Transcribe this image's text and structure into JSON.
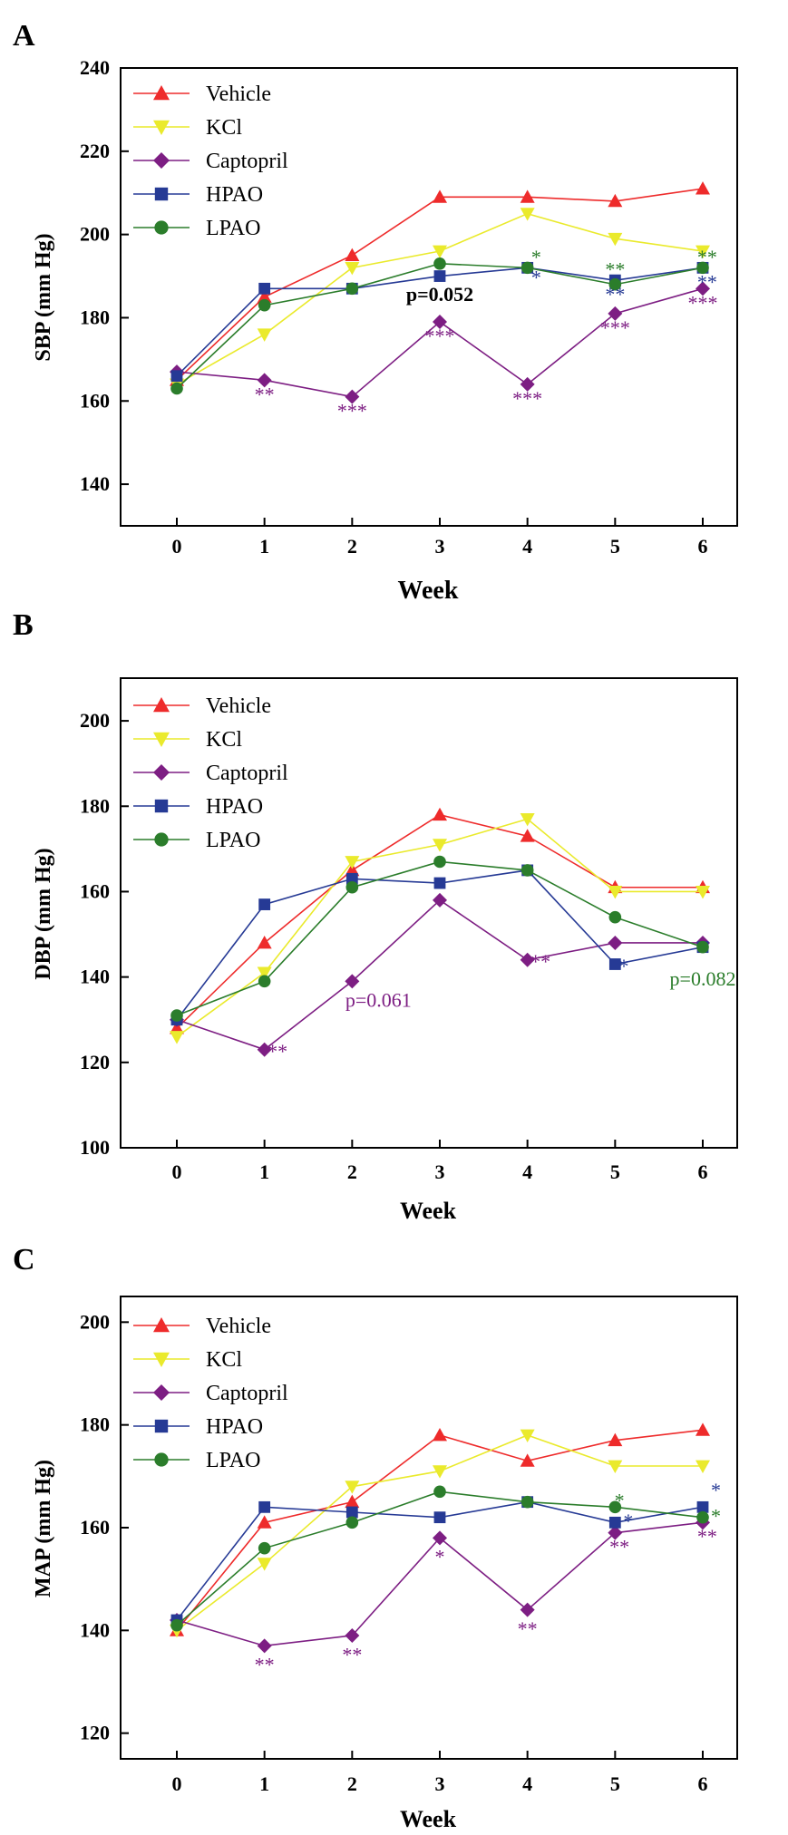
{
  "colors": {
    "Vehicle": "#ee2b2b",
    "KCl": "#eaea2c",
    "Captopril": "#7d1e83",
    "HPAO": "#263a95",
    "LPAO": "#2b7d2b",
    "axis": "#000000"
  },
  "chart_data": [
    {
      "type": "line",
      "panel": "A",
      "title": "",
      "xlabel": "Week",
      "ylabel": "SBP (mm Hg)",
      "x": [
        0,
        1,
        2,
        3,
        4,
        5,
        6
      ],
      "xlim": [
        -0.5,
        6.5
      ],
      "ylim": [
        130,
        240
      ],
      "yticks": [
        140,
        160,
        180,
        200,
        220,
        240
      ],
      "legend_position": "top-left",
      "series": [
        {
          "name": "Vehicle",
          "marker": "triangle-up",
          "values": [
            165,
            185,
            195,
            209,
            209,
            208,
            211
          ]
        },
        {
          "name": "KCl",
          "marker": "triangle-down",
          "values": [
            164,
            176,
            192,
            196,
            205,
            199,
            196
          ]
        },
        {
          "name": "Captopril",
          "marker": "diamond",
          "values": [
            167,
            165,
            161,
            179,
            164,
            181,
            187
          ]
        },
        {
          "name": "HPAO",
          "marker": "square",
          "values": [
            166,
            187,
            187,
            190,
            192,
            189,
            192
          ]
        },
        {
          "name": "LPAO",
          "marker": "circle",
          "values": [
            163,
            183,
            187,
            193,
            192,
            188,
            192
          ]
        }
      ],
      "annotations": [
        {
          "text": "**",
          "x": 1,
          "y": 160,
          "color": "Captopril"
        },
        {
          "text": "***",
          "x": 2,
          "y": 156,
          "color": "Captopril"
        },
        {
          "text": "***",
          "x": 3,
          "y": 174,
          "color": "Captopril"
        },
        {
          "text": "p=0.052",
          "x": 3,
          "y": 184,
          "color": "axis",
          "bold": true
        },
        {
          "text": "***",
          "x": 4,
          "y": 159,
          "color": "Captopril"
        },
        {
          "text": "*",
          "x": 4.1,
          "y": 193,
          "color": "LPAO"
        },
        {
          "text": "*",
          "x": 4.1,
          "y": 188,
          "color": "HPAO"
        },
        {
          "text": "**",
          "x": 5,
          "y": 190,
          "color": "LPAO"
        },
        {
          "text": "**",
          "x": 5,
          "y": 184,
          "color": "HPAO"
        },
        {
          "text": "***",
          "x": 5,
          "y": 176,
          "color": "Captopril"
        },
        {
          "text": "**",
          "x": 6.05,
          "y": 193,
          "color": "LPAO"
        },
        {
          "text": "**",
          "x": 6.05,
          "y": 187,
          "color": "HPAO"
        },
        {
          "text": "***",
          "x": 6,
          "y": 182,
          "color": "Captopril"
        }
      ]
    },
    {
      "type": "line",
      "panel": "B",
      "title": "",
      "xlabel": "Week",
      "ylabel": "DBP (mm Hg)",
      "x": [
        0,
        1,
        2,
        3,
        4,
        5,
        6
      ],
      "xlim": [
        -0.5,
        6.5
      ],
      "ylim": [
        100,
        210
      ],
      "yticks": [
        100,
        120,
        140,
        160,
        180,
        200
      ],
      "legend_position": "top-left",
      "series": [
        {
          "name": "Vehicle",
          "marker": "triangle-up",
          "values": [
            128,
            148,
            165,
            178,
            173,
            161,
            161
          ]
        },
        {
          "name": "KCl",
          "marker": "triangle-down",
          "values": [
            126,
            141,
            167,
            171,
            177,
            160,
            160
          ]
        },
        {
          "name": "Captopril",
          "marker": "diamond",
          "values": [
            130,
            123,
            139,
            158,
            144,
            148,
            148
          ]
        },
        {
          "name": "HPAO",
          "marker": "square",
          "values": [
            130,
            157,
            163,
            162,
            165,
            143,
            147
          ]
        },
        {
          "name": "LPAO",
          "marker": "circle",
          "values": [
            131,
            139,
            161,
            167,
            165,
            154,
            147
          ]
        }
      ],
      "annotations": [
        {
          "text": "**",
          "x": 1.15,
          "y": 121,
          "color": "Captopril"
        },
        {
          "text": "p=0.061",
          "x": 2.3,
          "y": 133,
          "color": "Captopril"
        },
        {
          "text": "**",
          "x": 4.15,
          "y": 142,
          "color": "Captopril"
        },
        {
          "text": "*",
          "x": 5.1,
          "y": 141,
          "color": "HPAO"
        },
        {
          "text": "p=0.082",
          "x": 6,
          "y": 138,
          "color": "LPAO"
        }
      ]
    },
    {
      "type": "line",
      "panel": "C",
      "title": "",
      "xlabel": "Week",
      "ylabel": "MAP (mm Hg)",
      "x": [
        0,
        1,
        2,
        3,
        4,
        5,
        6
      ],
      "xlim": [
        -0.5,
        6.5
      ],
      "ylim": [
        115,
        205
      ],
      "yticks": [
        120,
        140,
        160,
        180,
        200
      ],
      "legend_position": "top-left",
      "series": [
        {
          "name": "Vehicle",
          "marker": "triangle-up",
          "values": [
            140,
            161,
            165,
            178,
            173,
            177,
            179
          ]
        },
        {
          "name": "KCl",
          "marker": "triangle-down",
          "values": [
            140,
            153,
            168,
            171,
            178,
            172,
            172
          ]
        },
        {
          "name": "Captopril",
          "marker": "diamond",
          "values": [
            142,
            137,
            139,
            158,
            144,
            159,
            161
          ]
        },
        {
          "name": "HPAO",
          "marker": "square",
          "values": [
            142,
            164,
            163,
            162,
            165,
            161,
            164
          ]
        },
        {
          "name": "LPAO",
          "marker": "circle",
          "values": [
            141,
            156,
            161,
            167,
            165,
            164,
            162
          ]
        }
      ],
      "annotations": [
        {
          "text": "**",
          "x": 1,
          "y": 132,
          "color": "Captopril"
        },
        {
          "text": "**",
          "x": 2,
          "y": 134,
          "color": "Captopril"
        },
        {
          "text": "*",
          "x": 3,
          "y": 153,
          "color": "Captopril"
        },
        {
          "text": "**",
          "x": 4,
          "y": 139,
          "color": "Captopril"
        },
        {
          "text": "*",
          "x": 5.05,
          "y": 164,
          "color": "LPAO"
        },
        {
          "text": "*",
          "x": 5.15,
          "y": 160,
          "color": "HPAO"
        },
        {
          "text": "**",
          "x": 5.05,
          "y": 155,
          "color": "Captopril"
        },
        {
          "text": "*",
          "x": 6.15,
          "y": 166,
          "color": "HPAO"
        },
        {
          "text": "*",
          "x": 6.15,
          "y": 161,
          "color": "LPAO"
        },
        {
          "text": "**",
          "x": 6.05,
          "y": 157,
          "color": "Captopril"
        }
      ]
    }
  ]
}
